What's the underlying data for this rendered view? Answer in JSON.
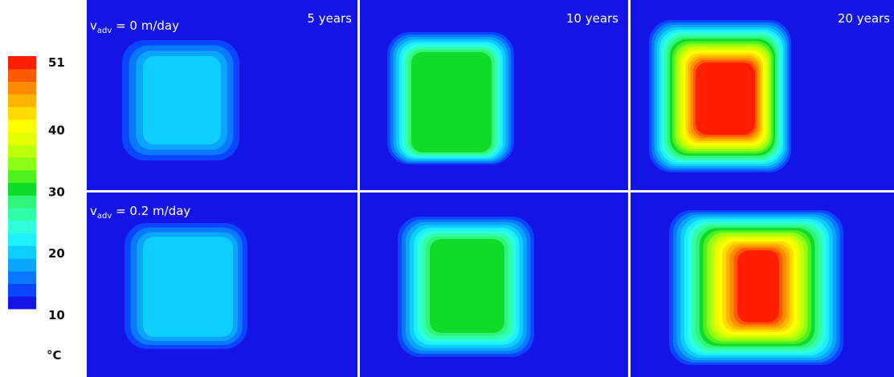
{
  "figure": {
    "colorbar": {
      "ticks": [
        51,
        40,
        30,
        20,
        10
      ],
      "min": 10,
      "max": 51,
      "unit": "°C",
      "colors": [
        "#1414e6",
        "#0a46ff",
        "#0a78ff",
        "#0aa5ff",
        "#10cdff",
        "#1ef0ff",
        "#30ffdc",
        "#30ffaa",
        "#30f57a",
        "#0fdc28",
        "#50f01e",
        "#8cff14",
        "#beff0a",
        "#e6ff00",
        "#ffff00",
        "#ffdc00",
        "#ffb400",
        "#ff8c00",
        "#ff5a00",
        "#ff1e00"
      ]
    },
    "rows": [
      {
        "velocity": {
          "symbol": "v",
          "subscript": "adv",
          "text": " = 0 m/day"
        }
      },
      {
        "velocity": {
          "symbol": "v",
          "subscript": "adv",
          "text": " = 0.2 m/day"
        }
      }
    ],
    "time_labels": [
      "5 years",
      "10 years",
      "20 years"
    ]
  }
}
